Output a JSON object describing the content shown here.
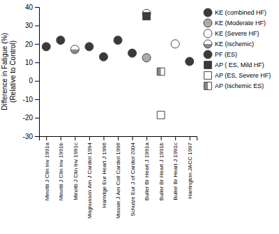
{
  "chart_data": {
    "type": "scatter",
    "categories": [
      "Minotti J Clin Inv 1991a",
      "Minotti J Clin Inv 1991b",
      "Minotti J Clin Inv 1991c",
      "Magnusson Am J Cardiol 1994",
      "Harridge Eur Heart J 1996",
      "Massie J Am Coll Cardiol 1996",
      "Schulze Eur J of Cardiol 2004",
      "Buller Br Heart J 1991a",
      "Buller Br Heart J 1991b",
      "Buller Br Heart J 1991c",
      "Harrington JACC 1997"
    ],
    "series": [
      {
        "name": "KE (combined HF)",
        "color": "#3a3a3a",
        "marker": "circle",
        "values": [
          18.5,
          22.0,
          null,
          18.5,
          null,
          22.0,
          15.0,
          null,
          null,
          null,
          10.5
        ]
      },
      {
        "name": "KE (Moderate HF)",
        "color": "#aaaaaa",
        "marker": "circle",
        "values": [
          null,
          null,
          null,
          null,
          null,
          null,
          null,
          12.5,
          null,
          null,
          null
        ]
      },
      {
        "name": "KE (Severe HF)",
        "color": "#ffffff",
        "marker": "circle",
        "values": [
          null,
          null,
          null,
          null,
          null,
          null,
          null,
          36.5,
          null,
          20.0,
          null
        ]
      },
      {
        "name": "KE (Ischemic)",
        "color": "#888888",
        "marker": "circle-half-bottom",
        "values": [
          null,
          null,
          17.0,
          null,
          null,
          null,
          null,
          null,
          null,
          null,
          null
        ]
      },
      {
        "name": "PF (ES)",
        "color": "#3a3a3a",
        "marker": "triangle-down",
        "values": [
          null,
          null,
          null,
          null,
          13.0,
          null,
          null,
          null,
          null,
          null,
          null
        ]
      },
      {
        "name": "AP ( ES, Mild HF)",
        "color": "#3a3a3a",
        "marker": "square",
        "values": [
          null,
          null,
          null,
          null,
          null,
          null,
          null,
          35.0,
          null,
          null,
          null
        ]
      },
      {
        "name": "AP (ES, Severe HF)",
        "color": "#ffffff",
        "marker": "square",
        "values": [
          null,
          null,
          null,
          null,
          null,
          null,
          null,
          null,
          -18.5,
          null,
          null
        ]
      },
      {
        "name": "AP (Ischemic ES)",
        "color": "#888888",
        "marker": "square-half-left",
        "values": [
          null,
          null,
          null,
          null,
          null,
          null,
          null,
          null,
          5.0,
          null,
          null
        ]
      }
    ],
    "y_label": "Difference in Fatigue (%)\n(Relative to Control)",
    "ylim": [
      -30,
      40
    ],
    "yticks": [
      -30,
      -20,
      -10,
      0,
      10,
      20,
      30,
      40
    ],
    "legend": "right"
  }
}
